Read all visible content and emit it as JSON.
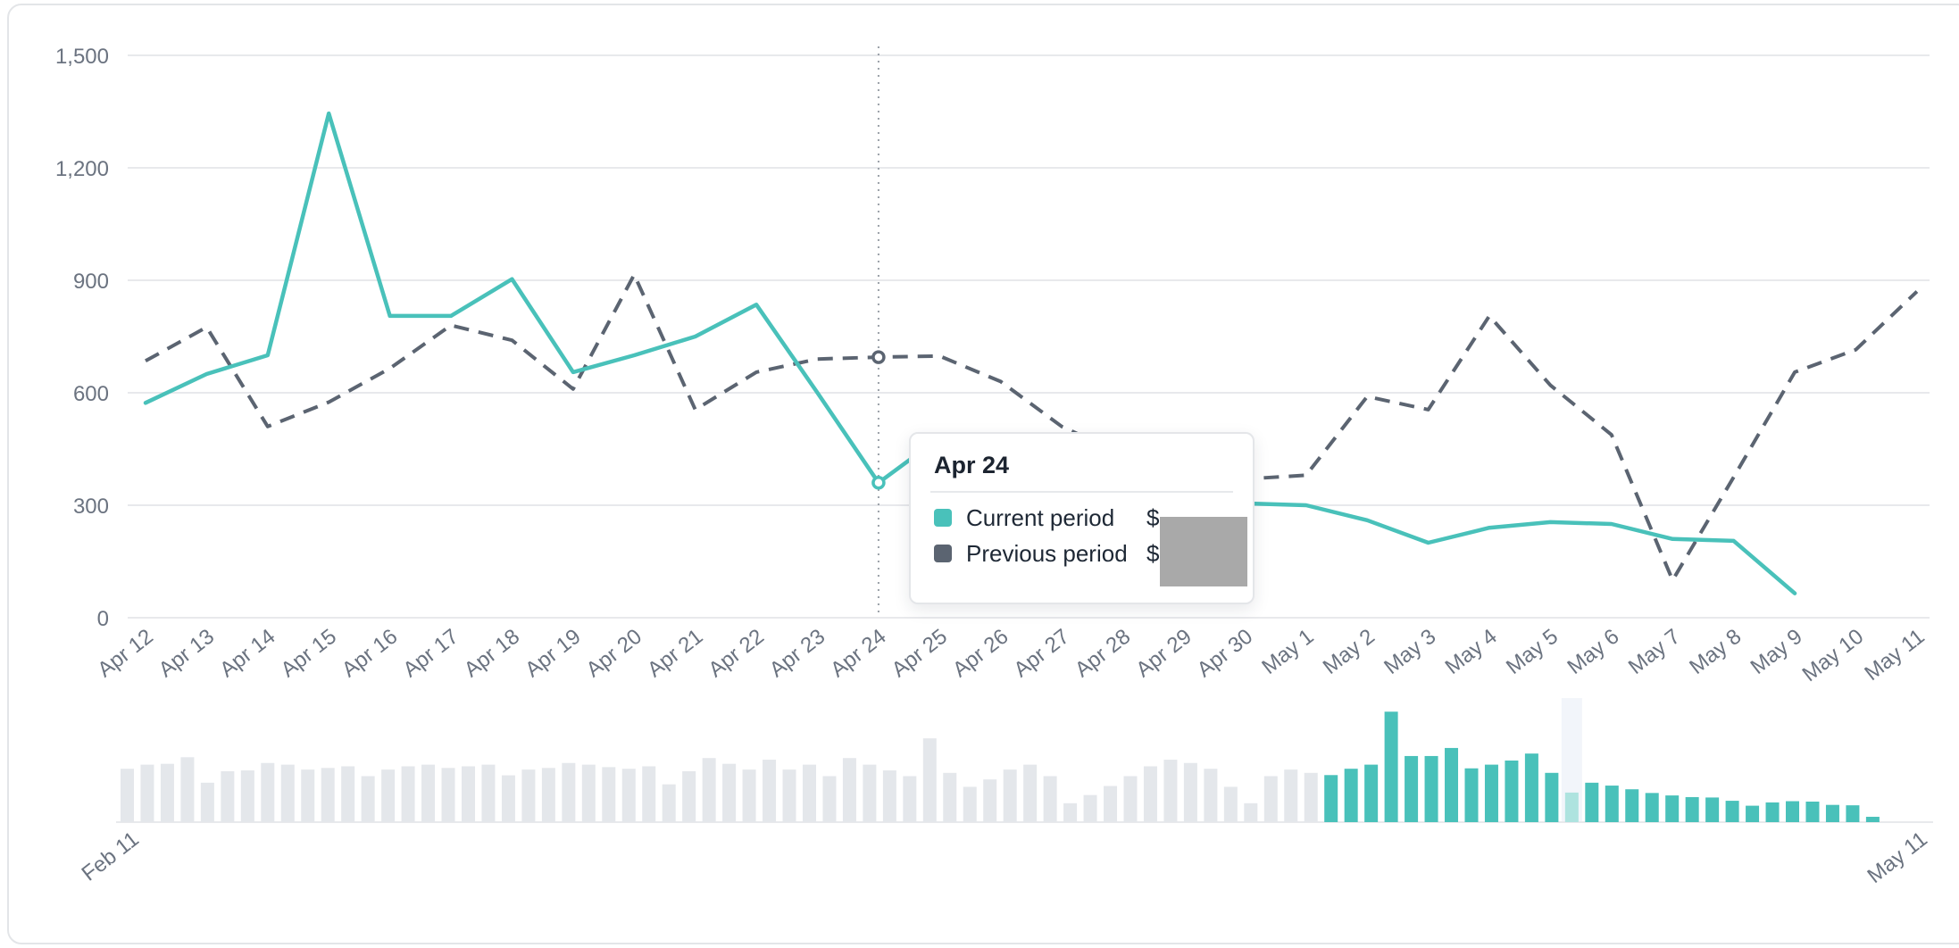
{
  "tooltip": {
    "title": "Apr 24",
    "value_prefix": "$",
    "values_redacted": true,
    "rows": [
      {
        "label": "Current period",
        "swatch_color": "#49c1ba"
      },
      {
        "label": "Previous period",
        "swatch_color": "#5b6471"
      }
    ]
  },
  "colors": {
    "current_line": "#49c1ba",
    "previous_line": "#5b6471",
    "gridline": "#e8e9ec",
    "axis_text": "#6b7380",
    "hover_rule": "#9aa0a8",
    "marker_fill": "#ffffff",
    "mini_bar_outside": "#e4e7eb",
    "mini_bar_selected": "#49c1ba",
    "mini_bar_highlight": "#aee3df",
    "mini_highlight_band": "#f2f5fa",
    "card_border": "#e3e5e8",
    "redaction_gray": "#a9a9a9"
  },
  "chart_data": [
    {
      "type": "line",
      "title": "",
      "xlabel": "",
      "ylabel": "",
      "grid": true,
      "ylim": [
        0,
        1500
      ],
      "ytick_values": [
        0,
        300,
        600,
        900,
        1200,
        1500
      ],
      "ytick_labels": [
        "0",
        "300",
        "600",
        "900",
        "1,200",
        "1,500"
      ],
      "categories": [
        "Apr 12",
        "Apr 13",
        "Apr 14",
        "Apr 15",
        "Apr 16",
        "Apr 17",
        "Apr 18",
        "Apr 19",
        "Apr 20",
        "Apr 21",
        "Apr 22",
        "Apr 23",
        "Apr 24",
        "Apr 25",
        "Apr 26",
        "Apr 27",
        "Apr 28",
        "Apr 29",
        "Apr 30",
        "May 1",
        "May 2",
        "May 3",
        "May 4",
        "May 5",
        "May 6",
        "May 7",
        "May 8",
        "May 9",
        "May 10",
        "May 11"
      ],
      "hover_category": "Apr 24",
      "legend_position": "tooltip",
      "series": [
        {
          "name": "Current period",
          "style": "solid",
          "color": "#49c1ba",
          "values": [
            573,
            650,
            700,
            1345,
            805,
            805,
            903,
            655,
            700,
            750,
            835,
            600,
            360,
            480,
            445,
            400,
            355,
            325,
            305,
            300,
            260,
            200,
            240,
            255,
            250,
            210,
            205,
            65,
            null,
            null
          ]
        },
        {
          "name": "Previous period",
          "style": "dashed",
          "color": "#5b6471",
          "values": [
            685,
            775,
            510,
            575,
            665,
            780,
            740,
            610,
            915,
            555,
            655,
            690,
            695,
            698,
            630,
            510,
            435,
            390,
            370,
            380,
            590,
            555,
            805,
            620,
            488,
            100,
            375,
            655,
            715,
            870
          ]
        }
      ]
    },
    {
      "type": "bar",
      "role": "range-navigator",
      "title": "",
      "x_start_label": "Feb 11",
      "x_end_label": "May 11",
      "selected_range": [
        "Apr 12",
        "May 11"
      ],
      "highlight_category": "Apr 24",
      "values_outside_selection": [
        650,
        700,
        710,
        790,
        480,
        620,
        630,
        720,
        700,
        640,
        660,
        680,
        560,
        640,
        680,
        700,
        660,
        680,
        700,
        570,
        640,
        660,
        720,
        700,
        670,
        650,
        680,
        460,
        620,
        780,
        710,
        640,
        760,
        640,
        700,
        560,
        780,
        700,
        630,
        560,
        1020,
        600,
        430,
        520,
        640,
        700,
        560,
        230,
        330,
        440,
        560,
        680,
        760,
        720,
        650,
        430,
        230,
        560,
        640,
        600
      ],
      "values_selected": [
        573,
        650,
        700,
        1345,
        805,
        805,
        903,
        655,
        700,
        750,
        835,
        600,
        360,
        480,
        445,
        400,
        355,
        325,
        305,
        300,
        260,
        200,
        240,
        255,
        250,
        210,
        205,
        65,
        null,
        null
      ]
    }
  ]
}
